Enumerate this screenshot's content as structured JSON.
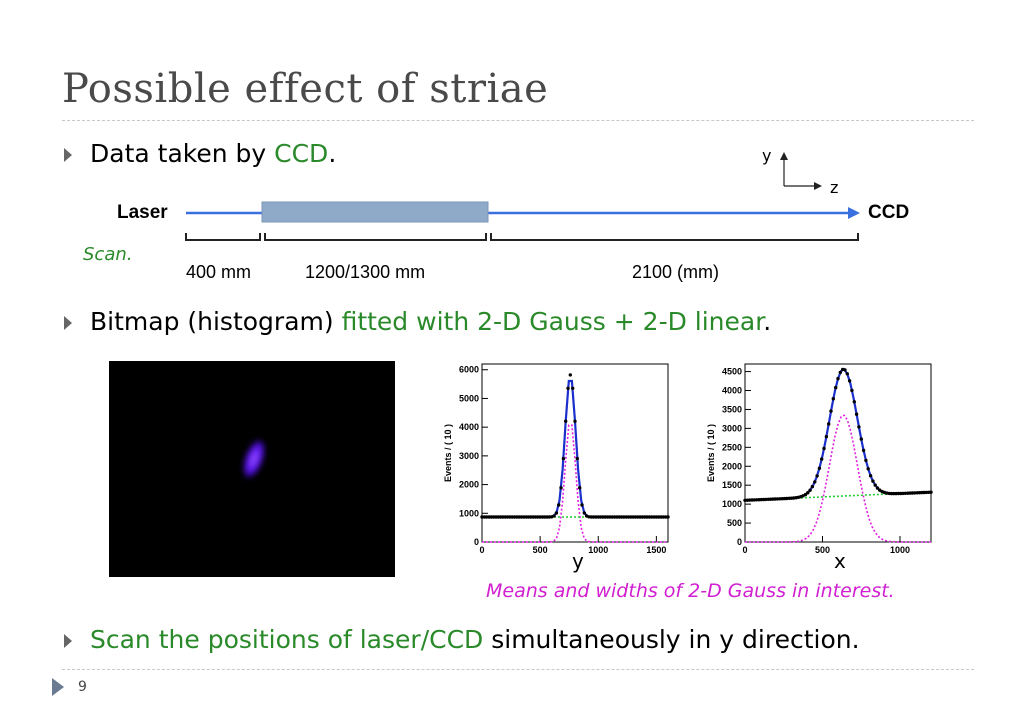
{
  "slide": {
    "title": "Possible effect of striae",
    "page_number": "9"
  },
  "bullets": [
    {
      "parts": [
        "Data taken by ",
        "CCD",
        "."
      ]
    },
    {
      "parts": [
        "Bitmap (histogram) ",
        "fitted with 2-D Gauss + 2-D linear",
        "."
      ]
    },
    {
      "parts": [
        "Scan the positions of laser/CCD",
        " simultaneously in y direction."
      ]
    }
  ],
  "setup": {
    "laser_label": "Laser",
    "ccd_label": "CCD",
    "scan_label": "Scan.",
    "axis_y": "y",
    "axis_z": "z",
    "distances": [
      "400 mm",
      "1200/1300 mm",
      "2100 (mm)"
    ],
    "colors": {
      "beam": "#3a6fe0",
      "block": "#8fa9c8"
    }
  },
  "caption": "Means and widths of 2-D Gauss in interest.",
  "chart_data": [
    {
      "type": "line",
      "xlabel": "y",
      "ylabel": "Events / ( 10 )",
      "xlim": [
        0,
        1600
      ],
      "ylim": [
        0,
        6200
      ],
      "xticks": [
        0,
        500,
        1000,
        1500
      ],
      "yticks": [
        0,
        1000,
        2000,
        3000,
        4000,
        5000,
        6000
      ],
      "fit": {
        "baseline": 870,
        "slope": 0.0,
        "amp_total": 4950,
        "mean": 760,
        "sigma": 45,
        "gauss_amp": 4250
      },
      "series": []
    },
    {
      "type": "line",
      "xlabel": "x",
      "ylabel": "Events / ( 10 )",
      "xlim": [
        0,
        1200
      ],
      "ylim": [
        0,
        4700
      ],
      "xticks": [
        0,
        500,
        1000
      ],
      "yticks": [
        0,
        500,
        1000,
        1500,
        2000,
        2500,
        3000,
        3500,
        4000,
        4500
      ],
      "fit": {
        "baseline": 1100,
        "slope": 0.18,
        "amp_total": 3350,
        "mean": 635,
        "sigma": 90,
        "gauss_amp": 3350
      },
      "series": []
    }
  ]
}
